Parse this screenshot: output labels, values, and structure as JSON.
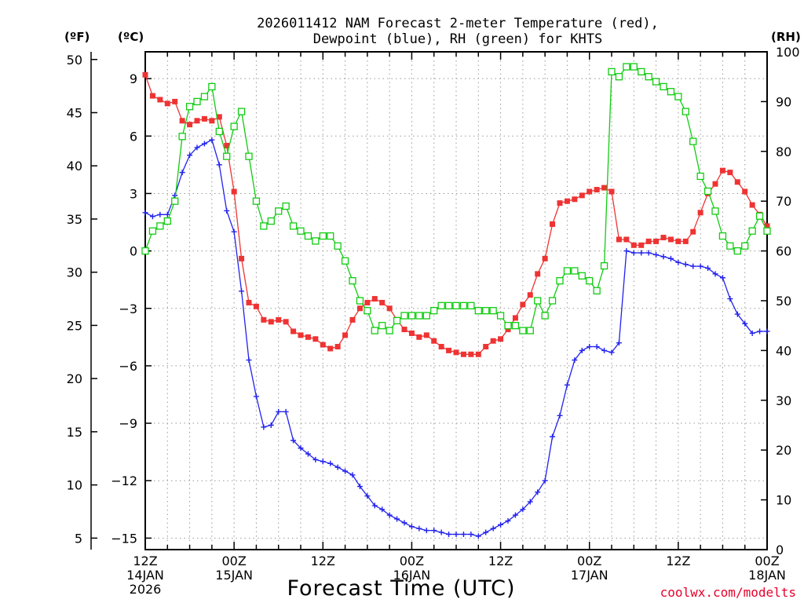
{
  "page": {
    "title_line1": "2026011412 NAM Forecast 2-meter Temperature (red),",
    "title_line2": "Dewpoint (blue), RH (green) for KHTS",
    "unit_f": "(ºF)",
    "unit_c": "(ºC)",
    "unit_rh": "(RH)",
    "credit": "coolwx.com/modelts"
  },
  "chart_data": {
    "type": "line",
    "title": "2026011412 NAM Forecast 2-meter Temperature (red), Dewpoint (blue), RH (green) for KHTS",
    "xlabel": "Forecast Time (UTC)",
    "x_unit": "forecast hour",
    "x_range": [
      0,
      84
    ],
    "x_ticks": [
      {
        "hour": 0,
        "lines": [
          "12Z",
          "14JAN",
          "2026"
        ]
      },
      {
        "hour": 12,
        "lines": [
          "00Z",
          "15JAN"
        ]
      },
      {
        "hour": 24,
        "lines": [
          "12Z"
        ]
      },
      {
        "hour": 36,
        "lines": [
          "00Z",
          "16JAN"
        ]
      },
      {
        "hour": 48,
        "lines": [
          "12Z"
        ]
      },
      {
        "hour": 60,
        "lines": [
          "00Z",
          "17JAN"
        ]
      },
      {
        "hour": 72,
        "lines": [
          "12Z"
        ]
      },
      {
        "hour": 84,
        "lines": [
          "00Z",
          "18JAN"
        ]
      }
    ],
    "y_left_c": {
      "label": "(ºC)",
      "range": [
        -15.6,
        10.4
      ],
      "ticks": [
        9,
        6,
        3,
        0,
        -3,
        -6,
        -9,
        -12,
        -15
      ]
    },
    "y_left_f": {
      "label": "(ºF)",
      "ticks": [
        50,
        45,
        40,
        35,
        30,
        25,
        20,
        15,
        10,
        5
      ]
    },
    "y_right": {
      "label": "(RH)",
      "range": [
        0,
        100
      ],
      "ticks": [
        100,
        90,
        80,
        70,
        60,
        50,
        40,
        30,
        20,
        10,
        0
      ]
    },
    "grid": true,
    "series": [
      {
        "name": "Temperature",
        "axis": "C",
        "color": "#ee3333",
        "marker": "square-filled",
        "points": [
          [
            0,
            9.2
          ],
          [
            1,
            8.1
          ],
          [
            2,
            7.9
          ],
          [
            3,
            7.7
          ],
          [
            4,
            7.8
          ],
          [
            5,
            6.8
          ],
          [
            6,
            6.6
          ],
          [
            7,
            6.8
          ],
          [
            8,
            6.9
          ],
          [
            9,
            6.8
          ],
          [
            10,
            7.0
          ],
          [
            11,
            5.5
          ],
          [
            12,
            3.1
          ],
          [
            13,
            -0.4
          ],
          [
            14,
            -2.7
          ],
          [
            15,
            -2.9
          ],
          [
            16,
            -3.6
          ],
          [
            17,
            -3.7
          ],
          [
            18,
            -3.6
          ],
          [
            19,
            -3.7
          ],
          [
            20,
            -4.2
          ],
          [
            21,
            -4.4
          ],
          [
            22,
            -4.5
          ],
          [
            23,
            -4.6
          ],
          [
            24,
            -4.9
          ],
          [
            25,
            -5.1
          ],
          [
            26,
            -5.0
          ],
          [
            27,
            -4.4
          ],
          [
            28,
            -3.6
          ],
          [
            29,
            -3.0
          ],
          [
            30,
            -2.7
          ],
          [
            31,
            -2.5
          ],
          [
            32,
            -2.7
          ],
          [
            33,
            -3.0
          ],
          [
            34,
            -3.6
          ],
          [
            35,
            -4.1
          ],
          [
            36,
            -4.3
          ],
          [
            37,
            -4.5
          ],
          [
            38,
            -4.4
          ],
          [
            39,
            -4.7
          ],
          [
            40,
            -5.0
          ],
          [
            41,
            -5.2
          ],
          [
            42,
            -5.3
          ],
          [
            43,
            -5.4
          ],
          [
            44,
            -5.4
          ],
          [
            45,
            -5.4
          ],
          [
            46,
            -5.0
          ],
          [
            47,
            -4.7
          ],
          [
            48,
            -4.6
          ],
          [
            49,
            -4.1
          ],
          [
            50,
            -3.5
          ],
          [
            51,
            -2.8
          ],
          [
            52,
            -2.3
          ],
          [
            53,
            -1.2
          ],
          [
            54,
            -0.4
          ],
          [
            55,
            1.4
          ],
          [
            56,
            2.5
          ],
          [
            57,
            2.6
          ],
          [
            58,
            2.7
          ],
          [
            59,
            2.9
          ],
          [
            60,
            3.1
          ],
          [
            61,
            3.2
          ],
          [
            62,
            3.3
          ],
          [
            63,
            3.1
          ],
          [
            64,
            0.6
          ],
          [
            65,
            0.6
          ],
          [
            66,
            0.3
          ],
          [
            67,
            0.3
          ],
          [
            68,
            0.5
          ],
          [
            69,
            0.5
          ],
          [
            70,
            0.7
          ],
          [
            71,
            0.6
          ],
          [
            72,
            0.5
          ],
          [
            73,
            0.5
          ],
          [
            74,
            1.0
          ],
          [
            75,
            2.0
          ],
          [
            76,
            3.0
          ],
          [
            77,
            3.5
          ],
          [
            78,
            4.2
          ],
          [
            79,
            4.1
          ],
          [
            80,
            3.6
          ],
          [
            81,
            3.1
          ],
          [
            82,
            2.4
          ],
          [
            83,
            1.9
          ],
          [
            84,
            1.3
          ]
        ]
      },
      {
        "name": "Dewpoint",
        "axis": "C",
        "color": "#2222ee",
        "marker": "plus",
        "points": [
          [
            0,
            2.0
          ],
          [
            1,
            1.8
          ],
          [
            2,
            1.9
          ],
          [
            3,
            1.9
          ],
          [
            4,
            2.9
          ],
          [
            5,
            4.1
          ],
          [
            6,
            5.0
          ],
          [
            7,
            5.4
          ],
          [
            8,
            5.6
          ],
          [
            9,
            5.8
          ],
          [
            10,
            4.5
          ],
          [
            11,
            2.1
          ],
          [
            12,
            1.0
          ],
          [
            13,
            -2.1
          ],
          [
            14,
            -5.7
          ],
          [
            15,
            -7.6
          ],
          [
            16,
            -9.2
          ],
          [
            17,
            -9.1
          ],
          [
            18,
            -8.4
          ],
          [
            19,
            -8.4
          ],
          [
            20,
            -9.9
          ],
          [
            21,
            -10.3
          ],
          [
            22,
            -10.6
          ],
          [
            23,
            -10.9
          ],
          [
            24,
            -11.0
          ],
          [
            25,
            -11.1
          ],
          [
            26,
            -11.3
          ],
          [
            27,
            -11.5
          ],
          [
            28,
            -11.7
          ],
          [
            29,
            -12.3
          ],
          [
            30,
            -12.8
          ],
          [
            31,
            -13.3
          ],
          [
            32,
            -13.5
          ],
          [
            33,
            -13.8
          ],
          [
            34,
            -14.0
          ],
          [
            35,
            -14.2
          ],
          [
            36,
            -14.4
          ],
          [
            37,
            -14.5
          ],
          [
            38,
            -14.6
          ],
          [
            39,
            -14.6
          ],
          [
            40,
            -14.7
          ],
          [
            41,
            -14.8
          ],
          [
            42,
            -14.8
          ],
          [
            43,
            -14.8
          ],
          [
            44,
            -14.8
          ],
          [
            45,
            -14.9
          ],
          [
            46,
            -14.7
          ],
          [
            47,
            -14.5
          ],
          [
            48,
            -14.3
          ],
          [
            49,
            -14.1
          ],
          [
            50,
            -13.8
          ],
          [
            51,
            -13.5
          ],
          [
            52,
            -13.1
          ],
          [
            53,
            -12.6
          ],
          [
            54,
            -12.0
          ],
          [
            55,
            -9.7
          ],
          [
            56,
            -8.6
          ],
          [
            57,
            -7.0
          ],
          [
            58,
            -5.7
          ],
          [
            59,
            -5.2
          ],
          [
            60,
            -5.0
          ],
          [
            61,
            -5.0
          ],
          [
            62,
            -5.2
          ],
          [
            63,
            -5.3
          ],
          [
            64,
            -4.8
          ],
          [
            65,
            0.0
          ],
          [
            66,
            -0.1
          ],
          [
            67,
            -0.1
          ],
          [
            68,
            -0.1
          ],
          [
            69,
            -0.2
          ],
          [
            70,
            -0.3
          ],
          [
            71,
            -0.4
          ],
          [
            72,
            -0.6
          ],
          [
            73,
            -0.7
          ],
          [
            74,
            -0.8
          ],
          [
            75,
            -0.8
          ],
          [
            76,
            -0.9
          ],
          [
            77,
            -1.2
          ],
          [
            78,
            -1.4
          ],
          [
            79,
            -2.5
          ],
          [
            80,
            -3.3
          ],
          [
            81,
            -3.8
          ],
          [
            82,
            -4.3
          ],
          [
            83,
            -4.2
          ],
          [
            84,
            -4.2
          ]
        ]
      },
      {
        "name": "RH",
        "axis": "RH",
        "color": "#11cc11",
        "marker": "square-open",
        "points": [
          [
            0,
            60
          ],
          [
            1,
            64
          ],
          [
            2,
            65
          ],
          [
            3,
            66
          ],
          [
            4,
            70
          ],
          [
            5,
            83
          ],
          [
            6,
            89
          ],
          [
            7,
            90
          ],
          [
            8,
            91
          ],
          [
            9,
            93
          ],
          [
            10,
            84
          ],
          [
            11,
            79
          ],
          [
            12,
            85
          ],
          [
            13,
            88
          ],
          [
            14,
            79
          ],
          [
            15,
            70
          ],
          [
            16,
            65
          ],
          [
            17,
            66
          ],
          [
            18,
            68
          ],
          [
            19,
            69
          ],
          [
            20,
            65
          ],
          [
            21,
            64
          ],
          [
            22,
            63
          ],
          [
            23,
            62
          ],
          [
            24,
            63
          ],
          [
            25,
            63
          ],
          [
            26,
            61
          ],
          [
            27,
            58
          ],
          [
            28,
            54
          ],
          [
            29,
            50
          ],
          [
            30,
            48
          ],
          [
            31,
            44
          ],
          [
            32,
            45
          ],
          [
            33,
            44
          ],
          [
            34,
            46
          ],
          [
            35,
            47
          ],
          [
            36,
            47
          ],
          [
            37,
            47
          ],
          [
            38,
            47
          ],
          [
            39,
            48
          ],
          [
            40,
            49
          ],
          [
            41,
            49
          ],
          [
            42,
            49
          ],
          [
            43,
            49
          ],
          [
            44,
            49
          ],
          [
            45,
            48
          ],
          [
            46,
            48
          ],
          [
            47,
            48
          ],
          [
            48,
            47
          ],
          [
            49,
            45
          ],
          [
            50,
            45
          ],
          [
            51,
            44
          ],
          [
            52,
            44
          ],
          [
            53,
            50
          ],
          [
            54,
            47
          ],
          [
            55,
            50
          ],
          [
            56,
            54
          ],
          [
            57,
            56
          ],
          [
            58,
            56
          ],
          [
            59,
            55
          ],
          [
            60,
            54
          ],
          [
            61,
            52
          ],
          [
            62,
            57
          ],
          [
            63,
            96
          ],
          [
            64,
            95
          ],
          [
            65,
            97
          ],
          [
            66,
            97
          ],
          [
            67,
            96
          ],
          [
            68,
            95
          ],
          [
            69,
            94
          ],
          [
            70,
            93
          ],
          [
            71,
            92
          ],
          [
            72,
            91
          ],
          [
            73,
            88
          ],
          [
            74,
            82
          ],
          [
            75,
            75
          ],
          [
            76,
            72
          ],
          [
            77,
            68
          ],
          [
            78,
            63
          ],
          [
            79,
            61
          ],
          [
            80,
            60
          ],
          [
            81,
            61
          ],
          [
            82,
            64
          ],
          [
            83,
            67
          ],
          [
            84,
            64
          ]
        ]
      }
    ]
  }
}
